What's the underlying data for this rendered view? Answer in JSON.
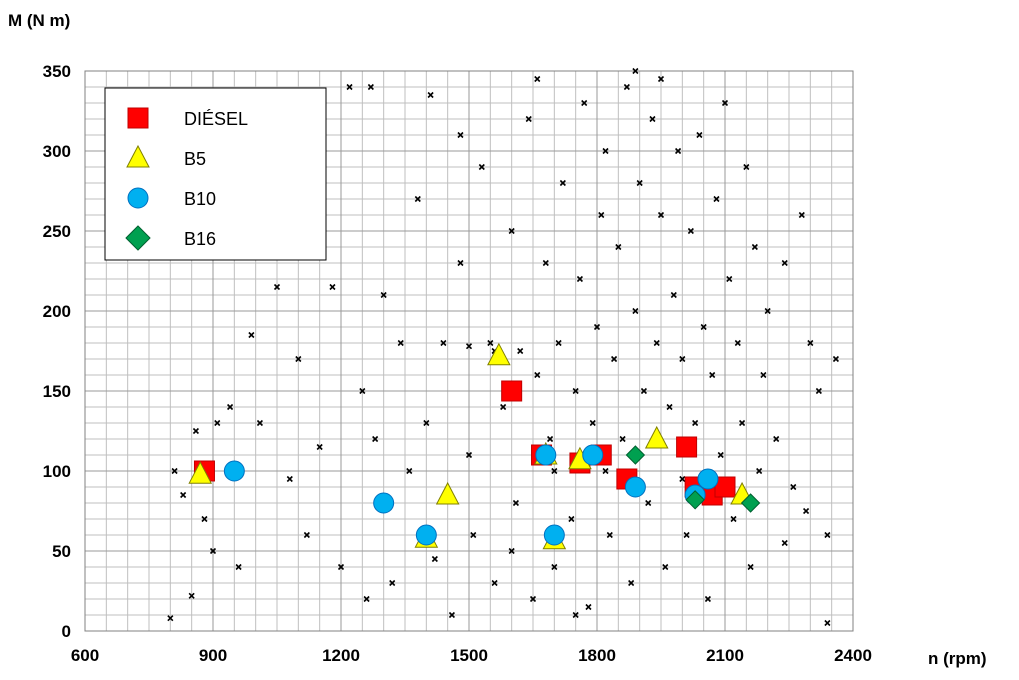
{
  "chart_data": {
    "type": "scatter",
    "y_label": "M (N m)",
    "x_label": "n (rpm)",
    "xlim": [
      600,
      2400
    ],
    "xticks": [
      600,
      900,
      1200,
      1500,
      1800,
      2100,
      2400
    ],
    "ylim": [
      0,
      350
    ],
    "yticks": [
      0,
      50,
      100,
      150,
      200,
      250,
      300,
      350
    ],
    "grid": true,
    "minor_grid_step": [
      50,
      10
    ],
    "legend": "upper left",
    "series": [
      {
        "marker": "x",
        "color": "#000000",
        "x": [
          800,
          810,
          830,
          850,
          860,
          880,
          900,
          910,
          940,
          960,
          990,
          1010,
          1050,
          1080,
          1100,
          1120,
          1150,
          1180,
          1200,
          1220,
          1250,
          1260,
          1280,
          1300,
          1320,
          1340,
          1360,
          1380,
          1400,
          1420,
          1440,
          1460,
          1480,
          1500,
          1510,
          1530,
          1550,
          1560,
          1580,
          1600,
          1610,
          1620,
          1640,
          1650,
          1660,
          1680,
          1690,
          1700,
          1710,
          1720,
          1740,
          1750,
          1760,
          1770,
          1780,
          1790,
          1800,
          1810,
          1820,
          1830,
          1840,
          1850,
          1860,
          1870,
          1880,
          1890,
          1900,
          1910,
          1920,
          1930,
          1940,
          1950,
          1960,
          1970,
          1980,
          1990,
          2000,
          2010,
          2020,
          2030,
          2040,
          2050,
          2060,
          2070,
          2080,
          2090,
          2100,
          2110,
          2120,
          2130,
          2140,
          2150,
          2160,
          2170,
          2180,
          2190,
          2200,
          2220,
          2240,
          2260,
          2280,
          2300,
          2320,
          2340,
          2360,
          2340,
          1950,
          1890,
          1660,
          1560,
          1500,
          2240,
          2290,
          1410,
          1270,
          1480,
          1700,
          1820,
          2000,
          1600,
          1750
        ],
        "values": [
          8,
          100,
          85,
          22,
          125,
          70,
          50,
          130,
          140,
          40,
          185,
          130,
          215,
          95,
          170,
          60,
          115,
          215,
          40,
          340,
          150,
          20,
          120,
          210,
          30,
          180,
          100,
          270,
          130,
          45,
          180,
          10,
          230,
          110,
          60,
          290,
          180,
          30,
          140,
          250,
          80,
          175,
          320,
          20,
          160,
          230,
          120,
          40,
          180,
          280,
          70,
          150,
          220,
          330,
          15,
          130,
          190,
          260,
          300,
          60,
          170,
          240,
          120,
          340,
          30,
          200,
          280,
          150,
          80,
          320,
          180,
          260,
          40,
          140,
          210,
          300,
          170,
          60,
          250,
          130,
          310,
          190,
          20,
          160,
          270,
          110,
          330,
          220,
          70,
          180,
          130,
          290,
          40,
          240,
          100,
          160,
          200,
          120,
          230,
          90,
          260,
          180,
          150,
          60,
          170,
          5,
          345,
          350,
          345,
          175,
          178,
          55,
          75,
          335,
          340,
          310,
          100,
          100,
          95,
          50,
          10
        ]
      },
      {
        "name": "DIÉSEL",
        "marker": "square",
        "color": "#ff0000",
        "x": [
          880,
          1600,
          1670,
          1760,
          1810,
          1870,
          2010,
          2030,
          2070,
          2100
        ],
        "values": [
          100,
          150,
          110,
          105,
          110,
          95,
          115,
          90,
          85,
          90
        ]
      },
      {
        "name": "B5",
        "marker": "triangle",
        "color": "#ffff00",
        "x": [
          870,
          1450,
          1570,
          1680,
          1400,
          1700,
          1760,
          1940,
          2140
        ],
        "values": [
          98,
          85,
          172,
          110,
          58,
          57,
          107,
          120,
          85
        ]
      },
      {
        "name": "B10",
        "marker": "circle",
        "color": "#00b0f0",
        "x": [
          950,
          1300,
          1400,
          1680,
          1700,
          1790,
          1890,
          2030,
          2060
        ],
        "values": [
          100,
          80,
          60,
          110,
          60,
          110,
          90,
          85,
          95
        ]
      },
      {
        "name": "B16",
        "marker": "diamond",
        "color": "#00a050",
        "x": [
          1890,
          2030,
          2160
        ],
        "values": [
          110,
          82,
          80
        ]
      }
    ]
  }
}
